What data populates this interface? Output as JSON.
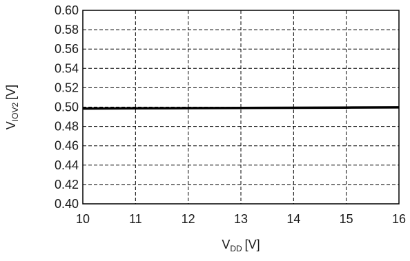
{
  "chart_data": {
    "type": "line",
    "title": "",
    "xlabel": "V",
    "xlabel_sub": "DD",
    "xlabel_unit": "[V]",
    "ylabel": "V",
    "ylabel_sub": "IOV2",
    "ylabel_unit": "[V]",
    "xlim": [
      10,
      16
    ],
    "ylim": [
      0.4,
      0.6
    ],
    "x_ticks": [
      "10",
      "11",
      "12",
      "13",
      "14",
      "15",
      "16"
    ],
    "y_ticks": [
      "0.40",
      "0.42",
      "0.44",
      "0.46",
      "0.48",
      "0.50",
      "0.52",
      "0.54",
      "0.56",
      "0.58",
      "0.60"
    ],
    "grid": true,
    "grid_style": "dashed",
    "series": [
      {
        "color": "#000000",
        "x": [
          10,
          11,
          12,
          13,
          14,
          15,
          16
        ],
        "y": [
          0.4985,
          0.4987,
          0.4989,
          0.4991,
          0.4993,
          0.4995,
          0.4997
        ]
      }
    ]
  }
}
